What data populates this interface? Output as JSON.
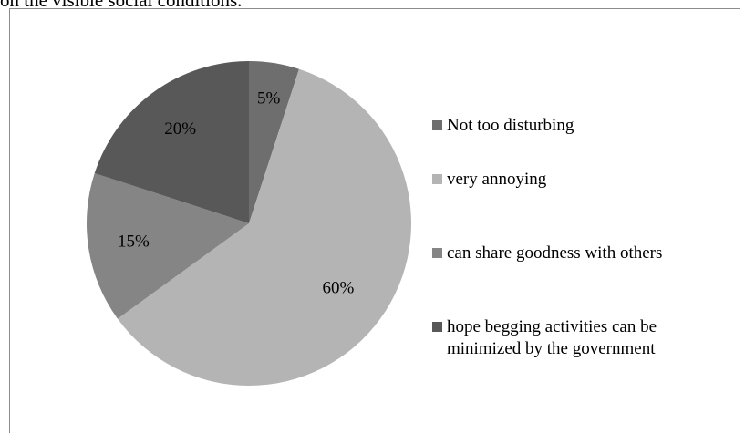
{
  "header_text": "on the visible social conditions.",
  "chart_data": {
    "type": "pie",
    "slices": [
      {
        "label": "Not too disturbing",
        "value": 5,
        "display": "5%",
        "color": "#6e6e6e"
      },
      {
        "label": "very annoying",
        "value": 60,
        "display": "60%",
        "color": "#b4b4b4"
      },
      {
        "label": "can share goodness with others",
        "value": 15,
        "display": "15%",
        "color": "#858585"
      },
      {
        "label": "hope begging activities can be minimized by the government",
        "value": 20,
        "display": "20%",
        "color": "#585858"
      }
    ],
    "legend_position": "right",
    "title": ""
  },
  "legend": [
    {
      "text": "Not too disturbing",
      "color": "#6e6e6e"
    },
    {
      "text": "very annoying",
      "color": "#b4b4b4"
    },
    {
      "text": "can share goodness with others",
      "color": "#858585"
    },
    {
      "text": "hope begging activities can be minimized by the government",
      "color": "#585858"
    }
  ]
}
